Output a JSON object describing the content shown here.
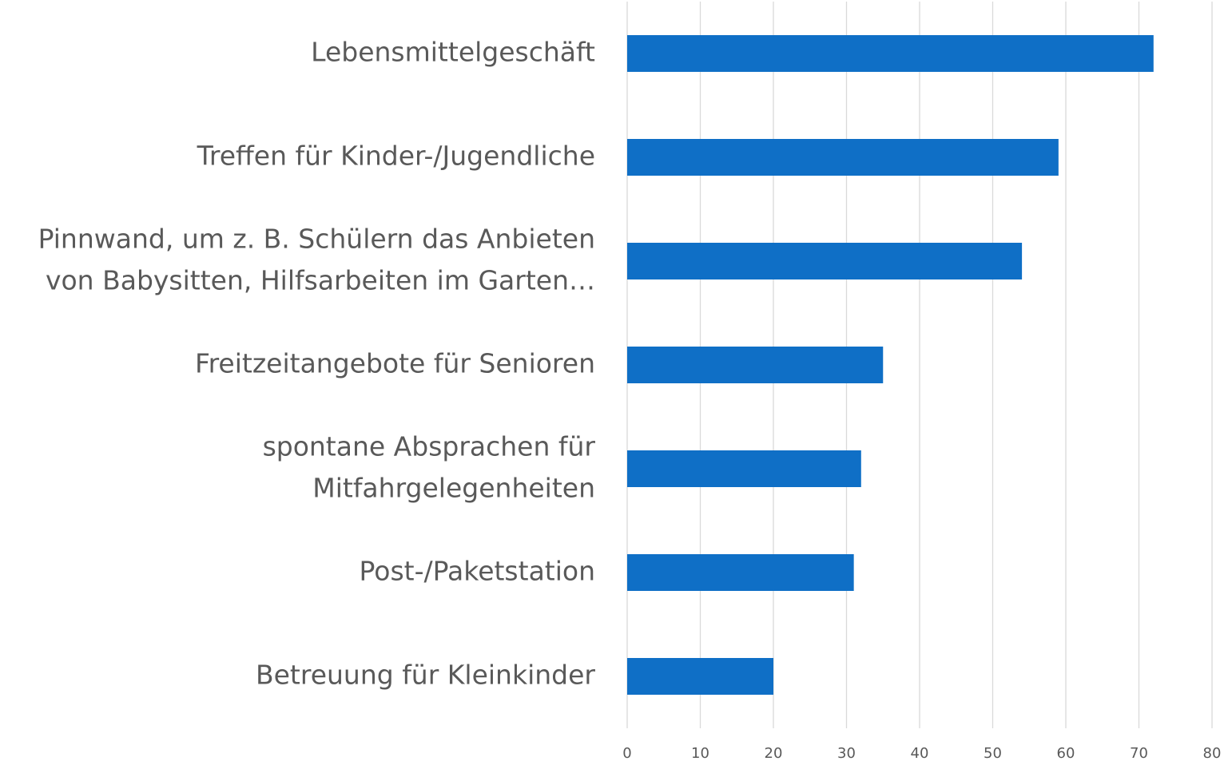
{
  "chart_data": {
    "type": "bar",
    "orientation": "horizontal",
    "categories": [
      "Lebensmittelgeschäft",
      "Treffen für Kinder-/Jugendliche",
      [
        "Pinnwand, um z. B. Schülern das Anbieten",
        "von Babysitten, Hilfsarbeiten im Garten…"
      ],
      "Freitzeitangebote für Senioren",
      [
        "spontane Absprachen für",
        "Mitfahrgelegenheiten"
      ],
      "Post-/Paketstation",
      "Betreuung für Kleinkinder"
    ],
    "values": [
      72,
      59,
      54,
      35,
      32,
      31,
      20
    ],
    "color": "#0f6fc6",
    "xlim": [
      0,
      80
    ],
    "xticks": [
      0,
      10,
      20,
      30,
      40,
      50,
      60,
      70,
      80
    ],
    "grid": true
  }
}
